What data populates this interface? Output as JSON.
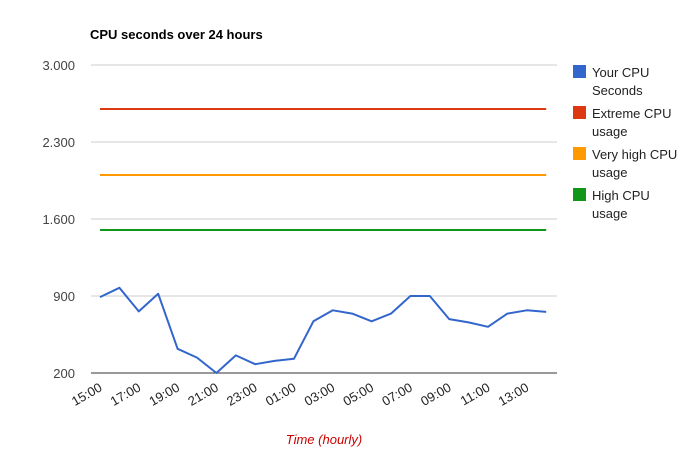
{
  "chart_data": {
    "type": "line",
    "title": "CPU seconds over 24 hours",
    "xlabel": "Time (hourly)",
    "ylabel": "",
    "ylim": [
      200,
      3000
    ],
    "yticks": [
      "3.000",
      "2.300",
      "1.600",
      "900",
      "200"
    ],
    "ytick_values": [
      3000,
      2300,
      1600,
      900,
      200
    ],
    "xticks": [
      "15:00",
      "17:00",
      "19:00",
      "21:00",
      "23:00",
      "01:00",
      "03:00",
      "05:00",
      "07:00",
      "09:00",
      "11:00",
      "13:00"
    ],
    "categories": [
      "15:00",
      "16:00",
      "17:00",
      "18:00",
      "19:00",
      "20:00",
      "21:00",
      "22:00",
      "23:00",
      "00:00",
      "01:00",
      "02:00",
      "03:00",
      "04:00",
      "05:00",
      "06:00",
      "07:00",
      "08:00",
      "09:00",
      "10:00",
      "11:00",
      "12:00",
      "13:00",
      "14:00"
    ],
    "grid": true,
    "legend_position": "right",
    "series": [
      {
        "name": "Your CPU Seconds",
        "legend_lines": [
          "Your CPU",
          "Seconds"
        ],
        "color": "#3366cc",
        "values": [
          890,
          975,
          760,
          920,
          420,
          340,
          200,
          360,
          280,
          310,
          330,
          670,
          770,
          740,
          670,
          740,
          900,
          900,
          690,
          660,
          620,
          740,
          770,
          755
        ]
      },
      {
        "name": "Extreme CPU usage",
        "legend_lines": [
          "Extreme CPU",
          "usage"
        ],
        "color": "#dc3912",
        "constant": 2600
      },
      {
        "name": "Very high CPU usage",
        "legend_lines": [
          "Very high CPU",
          "usage"
        ],
        "color": "#ff9900",
        "constant": 2000
      },
      {
        "name": "High CPU usage",
        "legend_lines": [
          "High CPU",
          "usage"
        ],
        "color": "#109618",
        "constant": 1500
      }
    ]
  }
}
